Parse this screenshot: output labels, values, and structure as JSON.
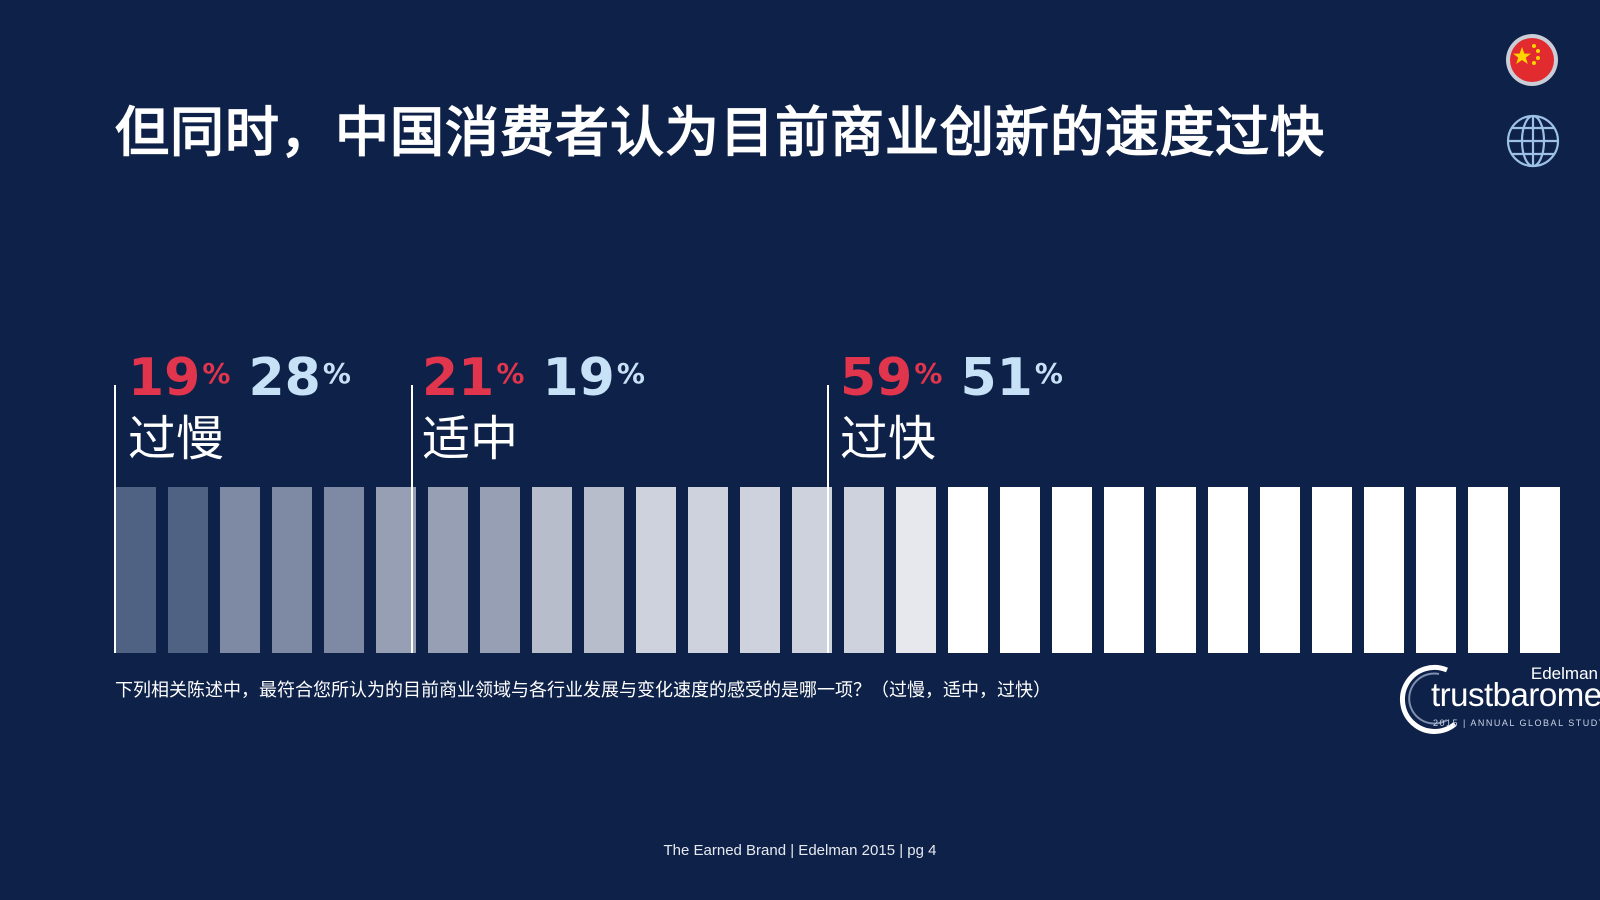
{
  "title": "但同时，中国消费者认为目前商业创新的速度过快",
  "icons": {
    "china_flag": "china-flag-icon",
    "globe": "globe-icon"
  },
  "colors": {
    "china": "#e0354d",
    "global": "#c7e1f7",
    "background": "#0e2148"
  },
  "chart_data": {
    "type": "bar",
    "categories": [
      "过慢",
      "适中",
      "过快"
    ],
    "series": [
      {
        "name": "China",
        "values": [
          19,
          21,
          59
        ]
      },
      {
        "name": "Global",
        "values": [
          28,
          19,
          51
        ]
      }
    ],
    "unit": "%",
    "scale_bars": 29
  },
  "groups": [
    {
      "label": "过慢",
      "china": "19",
      "global": "28",
      "pct": "%"
    },
    {
      "label": "适中",
      "china": "21",
      "global": "19",
      "pct": "%"
    },
    {
      "label": "过快",
      "china": "59",
      "global": "51",
      "pct": "%"
    }
  ],
  "question": "下列相关陈述中，最符合您所认为的目前商业领域与各行业发展与变化速度的感受的是哪一项？（过慢，适中，过快）",
  "footer": "The Earned Brand | Edelman 2015 | pg 4",
  "logo": {
    "brand": "Edelman",
    "name": "trustbarometer",
    "year": "2015",
    "subtitle": "ANNUAL GLOBAL STUDY"
  }
}
